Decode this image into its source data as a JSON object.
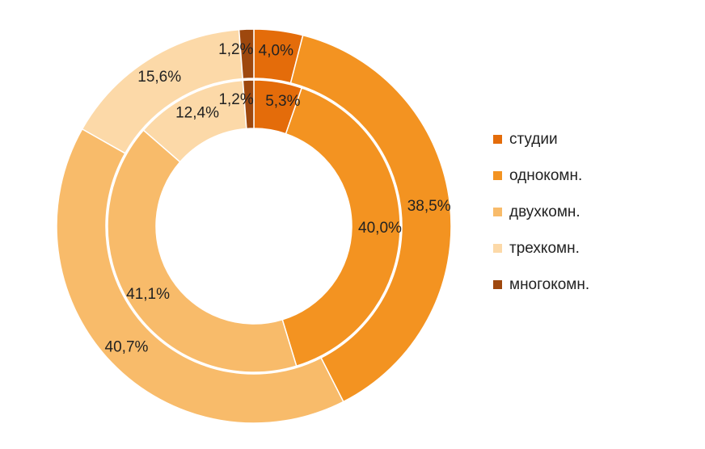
{
  "chart_data": {
    "type": "donut",
    "categories": [
      "студии",
      "однокомн.",
      "двухкомн.",
      "трехкомн.",
      "многокомн."
    ],
    "colors": [
      "#E46C0A",
      "#F39321",
      "#F8BB6A",
      "#FCD9A8",
      "#9E480E"
    ],
    "series": [
      {
        "ring": "outer",
        "values": [
          4.0,
          38.5,
          40.7,
          15.6,
          1.2
        ],
        "labels": [
          "4,0%",
          "38,5%",
          "40,7%",
          "15,6%",
          "1,2%"
        ]
      },
      {
        "ring": "inner",
        "values": [
          5.3,
          40.0,
          41.1,
          12.4,
          1.2
        ],
        "labels": [
          "5,3%",
          "40,0%",
          "41,1%",
          "12,4%",
          "1,2%"
        ]
      }
    ],
    "legend_position": "right"
  }
}
